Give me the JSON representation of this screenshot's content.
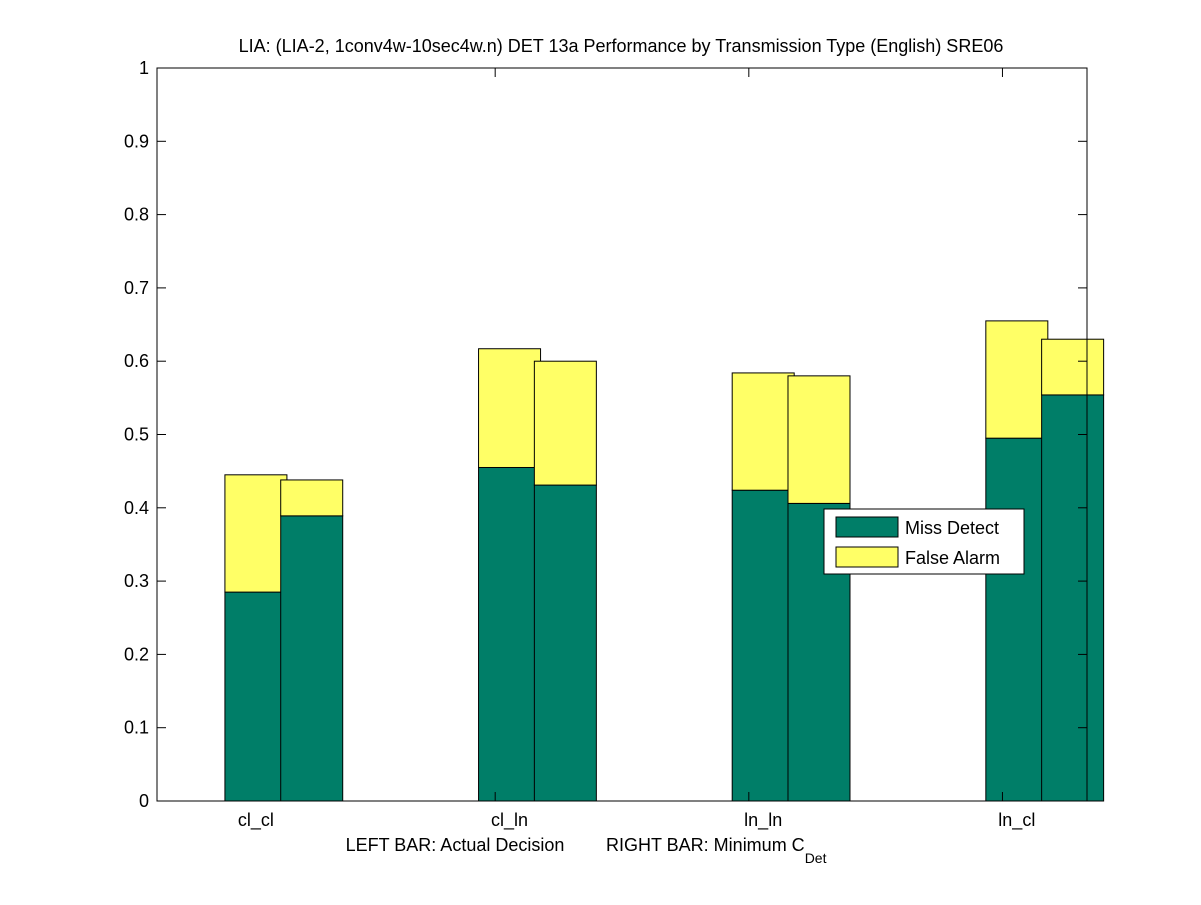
{
  "chart_data": {
    "type": "bar",
    "title": "LIA: (LIA-2, 1conv4w-10sec4w.n) DET 13a Performance by Transmission Type (English) SRE06",
    "xlabel_left": "LEFT BAR: Actual Decision",
    "xlabel_right_prefix": "RIGHT BAR: Minimum C",
    "xlabel_right_subscript": "Det",
    "ylabel": "",
    "ylim": [
      0,
      1
    ],
    "yticks": [
      "0",
      "0.1",
      "0.2",
      "0.3",
      "0.4",
      "0.5",
      "0.6",
      "0.7",
      "0.8",
      "0.9",
      "1"
    ],
    "categories": [
      "cl_cl",
      "cl_ln",
      "ln_ln",
      "ln_cl"
    ],
    "bar_roles": [
      "Actual Decision",
      "Minimum C_Det"
    ],
    "series": [
      {
        "name": "Miss Detect",
        "color": "#007e68",
        "actual": [
          0.285,
          0.455,
          0.424,
          0.495
        ],
        "minimum": [
          0.389,
          0.431,
          0.406,
          0.554
        ]
      },
      {
        "name": "False Alarm",
        "color": "#ffff66",
        "actual": [
          0.16,
          0.162,
          0.16,
          0.16
        ],
        "minimum": [
          0.049,
          0.169,
          0.174,
          0.076
        ]
      }
    ],
    "stacked": true,
    "legend_position": "right",
    "grid": false
  }
}
